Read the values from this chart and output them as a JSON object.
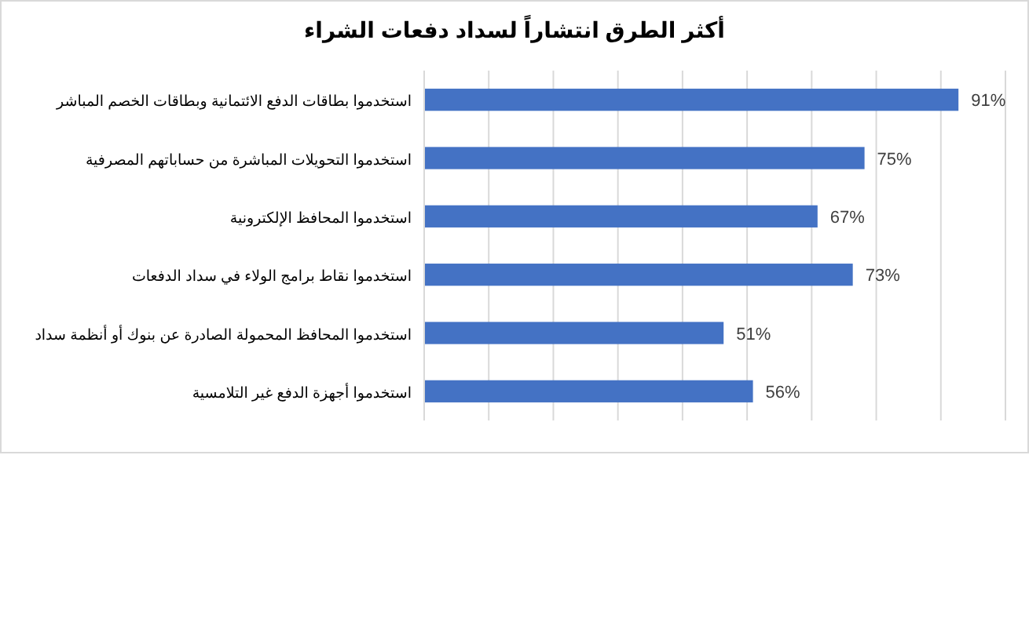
{
  "chart_data": {
    "type": "bar",
    "orientation": "horizontal",
    "title": "أكثر الطرق انتشاراً لسداد دفعات الشراء",
    "categories": [
      "استخدموا بطاقات الدفع الائتمانية وبطاقات الخصم المباشر",
      "استخدموا التحويلات المباشرة من حساباتهم المصرفية",
      "استخدموا المحافظ الإلكترونية",
      "استخدموا نقاط برامج الولاء في سداد الدفعات",
      "استخدموا المحافظ المحمولة الصادرة عن بنوك أو أنظمة سداد",
      "استخدموا أجهزة الدفع غير التلامسية"
    ],
    "values": [
      91,
      75,
      67,
      73,
      51,
      56
    ],
    "value_labels": [
      "91%",
      "75%",
      "67%",
      "73%",
      "51%",
      "56%"
    ],
    "color": "#4472c4",
    "xlim": [
      0,
      99
    ],
    "xticks": [
      {
        "value": 0,
        "label": null
      },
      {
        "value": 11,
        "label": null
      },
      {
        "value": 22,
        "label": null
      },
      {
        "value": 33,
        "label": null
      },
      {
        "value": 44,
        "label": null
      },
      {
        "value": 55,
        "label": null
      },
      {
        "value": 66,
        "label": null
      },
      {
        "value": 77,
        "label": null
      },
      {
        "value": 88,
        "label": null
      },
      {
        "value": 99,
        "label": null
      }
    ],
    "grid": "x"
  }
}
